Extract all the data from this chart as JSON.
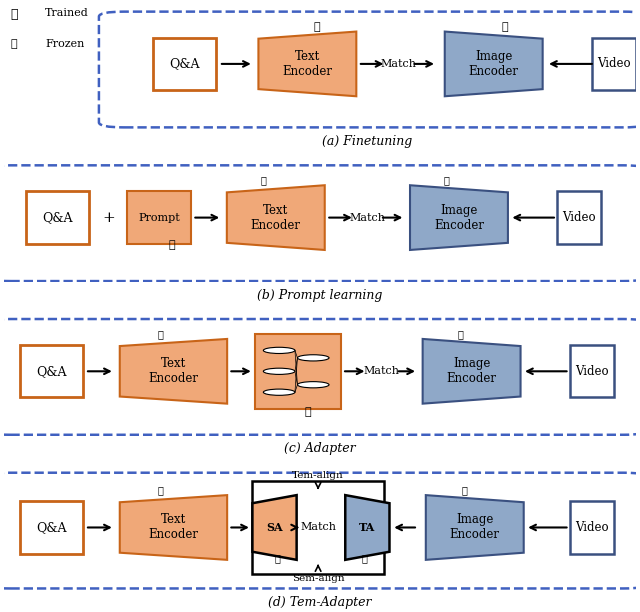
{
  "fig_width": 6.4,
  "fig_height": 6.12,
  "dpi": 100,
  "bg_color": "#ffffff",
  "orange_fill": "#F0A878",
  "blue_fill": "#8FA8C8",
  "orange_border": "#C86418",
  "blue_border": "#3A5080",
  "dark_orange_border": "#C86418",
  "box_orange": "#F5C060",
  "video_blue_border": "#3A5080",
  "video_blue_fill": "#FFFFFF",
  "nn_fill": "#F0A878",
  "panel_bg": "#FFFFFF",
  "dashed_border": "#4060C0",
  "text_color": "#000000",
  "subtitle_color": "#000000",
  "panels": [
    {
      "label": "(a) Finetuning"
    },
    {
      "label": "(b) Prompt learning"
    },
    {
      "label": "(c) Adapter"
    },
    {
      "label": "(d) Tem-Adapter"
    }
  ]
}
